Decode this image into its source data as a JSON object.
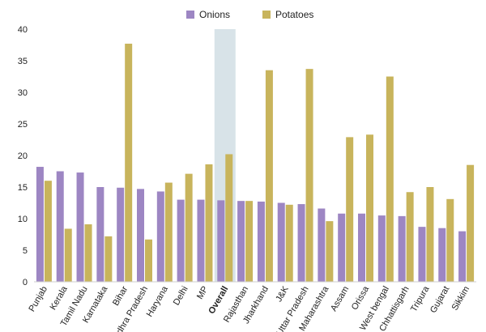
{
  "chart_data": {
    "type": "bar",
    "categories": [
      "Punjab",
      "Kerala",
      "Tamil Nadu",
      "Karnataka",
      "Bihar",
      "Andhra Pradesh",
      "Haryana",
      "Delhi",
      "MP",
      "Overall",
      "Rajasthan",
      "Jharkhand",
      "J&K",
      "Uttar Pradesh",
      "Maharashtra",
      "Assam",
      "Orissa",
      "West bengal",
      "Chhattisgarh",
      "Tripura",
      "Gujarat",
      "Sikkim"
    ],
    "highlight_category": "Overall",
    "series": [
      {
        "name": "Onions",
        "color": "#9d86c3",
        "values": [
          18.2,
          17.5,
          17.3,
          15.0,
          14.9,
          14.7,
          14.3,
          13.0,
          13.0,
          12.9,
          12.8,
          12.7,
          12.5,
          12.3,
          11.6,
          10.8,
          10.8,
          10.5,
          10.4,
          8.7,
          8.5,
          8.0
        ]
      },
      {
        "name": "Potatoes",
        "color": "#c8b45c",
        "values": [
          16.0,
          8.4,
          9.1,
          7.2,
          37.7,
          6.7,
          15.7,
          17.1,
          18.6,
          20.2,
          12.8,
          33.5,
          12.2,
          33.7,
          9.6,
          22.9,
          23.3,
          32.5,
          14.2,
          15.0,
          13.1,
          18.5
        ]
      }
    ],
    "ylim": [
      0,
      40
    ],
    "yticks": [
      "0",
      "5",
      "10",
      "15",
      "20",
      "25",
      "30",
      "35",
      "40"
    ],
    "legend_position": "top-center",
    "grid": false,
    "highlight_color": "#d8e3e8"
  }
}
